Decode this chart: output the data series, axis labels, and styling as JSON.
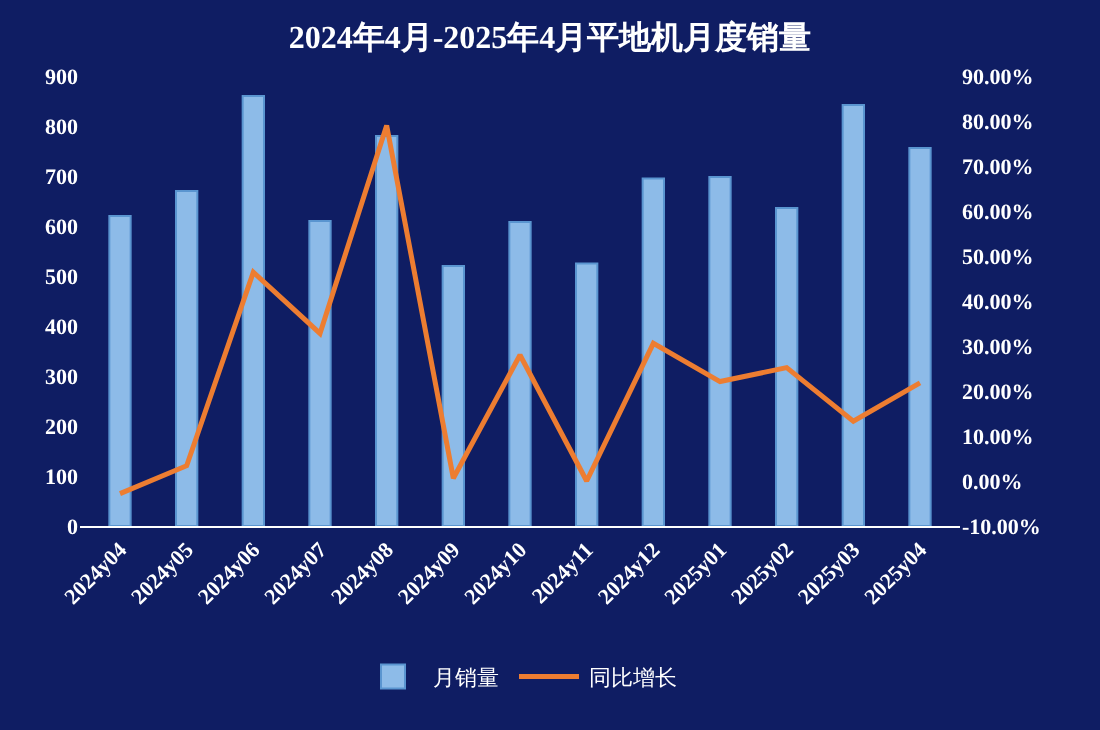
{
  "chart_data": {
    "type": "bar",
    "title": "2024年4月-2025年4月平地机月度销量",
    "categories": [
      "2024y04",
      "2024y05",
      "2024y06",
      "2024y07",
      "2024y08",
      "2024y09",
      "2024y10",
      "2024y11",
      "2024y12",
      "2025y01",
      "2025y02",
      "2025y03",
      "2025y04"
    ],
    "series": [
      {
        "name": "月销量",
        "color": "#8dbbe8",
        "values": [
          620,
          670,
          860,
          610,
          780,
          520,
          608,
          525,
          695,
          698,
          636,
          842,
          756
        ]
      },
      {
        "name": "同比增长",
        "type": "line",
        "axis": "y2",
        "color": "#ed7d31",
        "values": [
          -2.8,
          3.4,
          46.4,
          32.8,
          79,
          0.6,
          28,
          0,
          30.6,
          22.1,
          25.2,
          13.3,
          21.8
        ]
      }
    ],
    "ylim": [
      0,
      900
    ],
    "yticks": [
      0,
      100,
      200,
      300,
      400,
      500,
      600,
      700,
      800,
      900
    ],
    "y2lim": [
      -10,
      90
    ],
    "y2ticks": [
      {
        "value": -10,
        "label": "-10.00%"
      },
      {
        "value": 0,
        "label": "0.00%"
      },
      {
        "value": 10,
        "label": "10.00%"
      },
      {
        "value": 20,
        "label": "20.00%"
      },
      {
        "value": 30,
        "label": "30.00%"
      },
      {
        "value": 40,
        "label": "40.00%"
      },
      {
        "value": 50,
        "label": "50.00%"
      },
      {
        "value": 60,
        "label": "60.00%"
      },
      {
        "value": 70,
        "label": "70.00%"
      },
      {
        "value": 80,
        "label": "80.00%"
      },
      {
        "value": 90,
        "label": "90.00%"
      }
    ],
    "grid": false,
    "legend": "bottom",
    "marker": "none",
    "line_style": "solid"
  }
}
